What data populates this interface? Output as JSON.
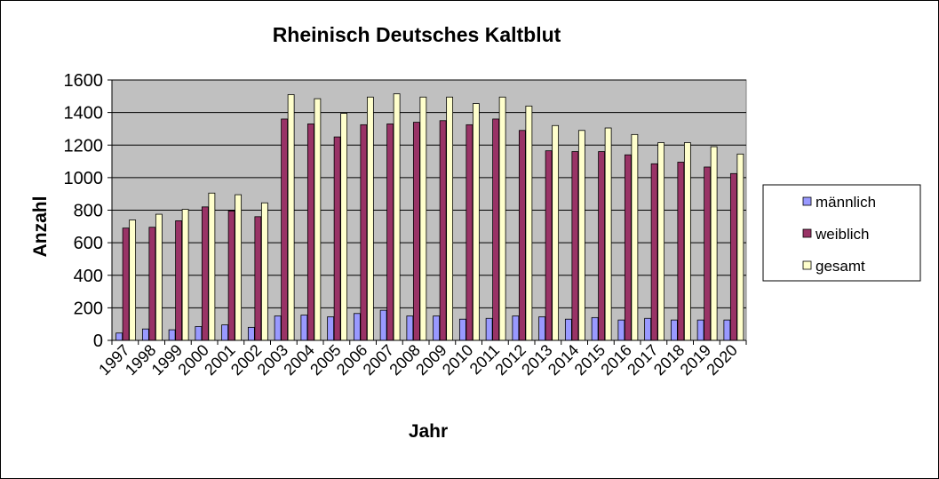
{
  "chart_data": {
    "type": "bar",
    "title": "Rheinisch Deutsches Kaltblut",
    "xlabel": "Jahr",
    "ylabel": "Anzahl",
    "ylim": [
      0,
      1600
    ],
    "yticks": [
      0,
      200,
      400,
      600,
      800,
      1000,
      1200,
      1400,
      1600
    ],
    "grid": true,
    "legend_position": "right",
    "categories": [
      "1997",
      "1998",
      "1999",
      "2000",
      "2001",
      "2002",
      "2003",
      "2004",
      "2005",
      "2006",
      "2007",
      "2008",
      "2009",
      "2010",
      "2011",
      "2012",
      "2013",
      "2014",
      "2015",
      "2016",
      "2017",
      "2018",
      "2019",
      "2020"
    ],
    "series": [
      {
        "name": "männlich",
        "color": "#9999ff",
        "values": [
          45,
          70,
          65,
          85,
          95,
          80,
          150,
          155,
          145,
          165,
          185,
          150,
          150,
          130,
          135,
          150,
          145,
          130,
          140,
          125,
          135,
          125,
          125,
          125
        ]
      },
      {
        "name": "weiblich",
        "color": "#993366",
        "values": [
          690,
          695,
          735,
          820,
          795,
          760,
          1360,
          1330,
          1250,
          1325,
          1330,
          1340,
          1350,
          1325,
          1360,
          1290,
          1165,
          1160,
          1160,
          1140,
          1085,
          1095,
          1065,
          1025
        ]
      },
      {
        "name": "gesamt",
        "color": "#ffffcc",
        "values": [
          740,
          775,
          805,
          905,
          895,
          845,
          1510,
          1485,
          1395,
          1495,
          1515,
          1495,
          1495,
          1455,
          1495,
          1440,
          1320,
          1290,
          1305,
          1265,
          1215,
          1215,
          1190,
          1145
        ]
      }
    ]
  }
}
